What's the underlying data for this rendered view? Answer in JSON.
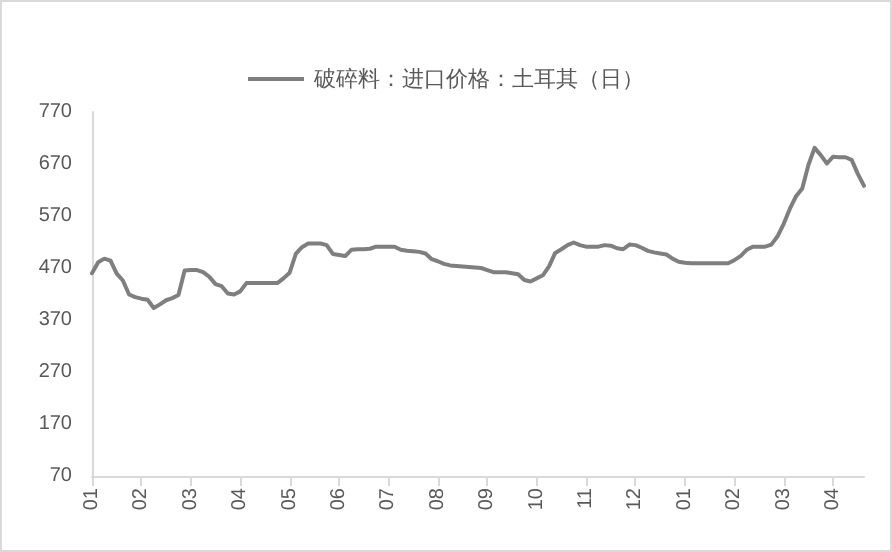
{
  "chart_data": {
    "type": "line",
    "legend": "top",
    "grid": false,
    "marker": "none",
    "line_style": "solid",
    "ylim": [
      70,
      770
    ],
    "yticks": [
      70,
      170,
      270,
      370,
      470,
      570,
      670,
      770
    ],
    "categories": [
      "01",
      null,
      null,
      null,
      null,
      null,
      null,
      null,
      "02",
      null,
      null,
      null,
      null,
      null,
      null,
      null,
      "03",
      null,
      null,
      null,
      null,
      null,
      null,
      null,
      "04",
      null,
      null,
      null,
      null,
      null,
      null,
      null,
      "05",
      null,
      null,
      null,
      null,
      null,
      null,
      null,
      "06",
      null,
      null,
      null,
      null,
      null,
      null,
      null,
      "07",
      null,
      null,
      null,
      null,
      null,
      null,
      null,
      "08",
      null,
      null,
      null,
      null,
      null,
      null,
      null,
      "09",
      null,
      null,
      null,
      null,
      null,
      null,
      null,
      "10",
      null,
      null,
      null,
      null,
      null,
      null,
      null,
      "11",
      null,
      null,
      null,
      null,
      null,
      null,
      null,
      "12",
      null,
      null,
      null,
      null,
      null,
      null,
      null,
      "01",
      null,
      null,
      null,
      null,
      null,
      null,
      null,
      "02",
      null,
      null,
      null,
      null,
      null,
      null,
      null,
      "03",
      null,
      null,
      null,
      null,
      null,
      null,
      null,
      "04",
      null,
      null,
      null,
      null,
      null
    ],
    "series": [
      {
        "name": "破碎料：进口价格：土耳其（日）",
        "color": "#7f7f7f",
        "values": [
          460,
          481,
          488,
          484,
          459,
          446,
          419,
          414,
          411,
          409,
          393,
          400,
          408,
          412,
          418,
          465,
          466,
          466,
          462,
          453,
          439,
          435,
          421,
          419,
          425,
          441,
          441,
          441,
          441,
          441,
          441,
          450,
          461,
          497,
          510,
          517,
          517,
          517,
          514,
          497,
          495,
          493,
          505,
          506,
          506,
          507,
          511,
          511,
          511,
          511,
          505,
          503,
          502,
          501,
          498,
          487,
          483,
          478,
          475,
          474,
          473,
          472,
          471,
          470,
          466,
          462,
          462,
          462,
          460,
          458,
          447,
          444,
          450,
          456,
          473,
          499,
          506,
          514,
          519,
          514,
          511,
          511,
          511,
          514,
          513,
          508,
          506,
          515,
          514,
          509,
          503,
          500,
          498,
          496,
          488,
          482,
          480,
          479,
          479,
          479,
          479,
          479,
          479,
          479,
          485,
          493,
          505,
          511,
          511,
          511,
          515,
          531,
          555,
          584,
          608,
          623,
          668,
          701,
          687,
          671,
          684,
          683,
          683,
          678,
          651,
          628
        ]
      }
    ]
  }
}
